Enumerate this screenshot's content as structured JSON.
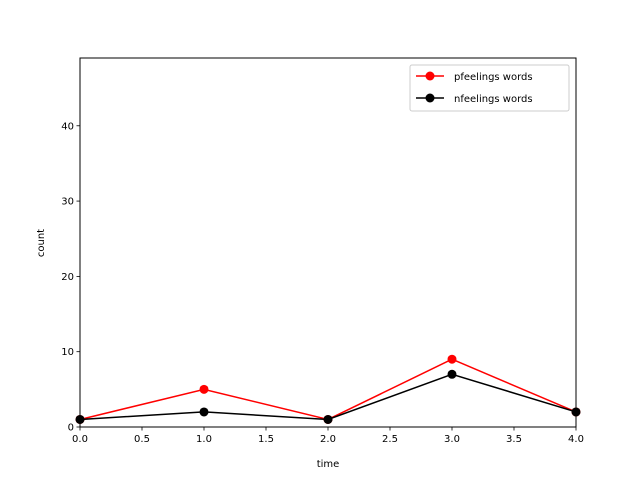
{
  "chart_data": {
    "type": "line",
    "title": "",
    "xlabel": "time",
    "ylabel": "count",
    "xlim": [
      0,
      4
    ],
    "ylim": [
      0,
      49
    ],
    "xticks": [
      "0.0",
      "0.5",
      "1.0",
      "1.5",
      "2.0",
      "2.5",
      "3.0",
      "3.5",
      "4.0"
    ],
    "yticks": [
      "0",
      "10",
      "20",
      "30",
      "40"
    ],
    "grid": false,
    "legend_position": "top-right",
    "x": [
      0,
      1,
      2,
      3,
      4
    ],
    "series": [
      {
        "name": "pfeelings words",
        "color": "#ff0000",
        "marker": "circle",
        "values": [
          1,
          5,
          1,
          9,
          2
        ]
      },
      {
        "name": "nfeelings words",
        "color": "#000000",
        "marker": "circle",
        "values": [
          1,
          2,
          1,
          7,
          2
        ]
      }
    ]
  }
}
